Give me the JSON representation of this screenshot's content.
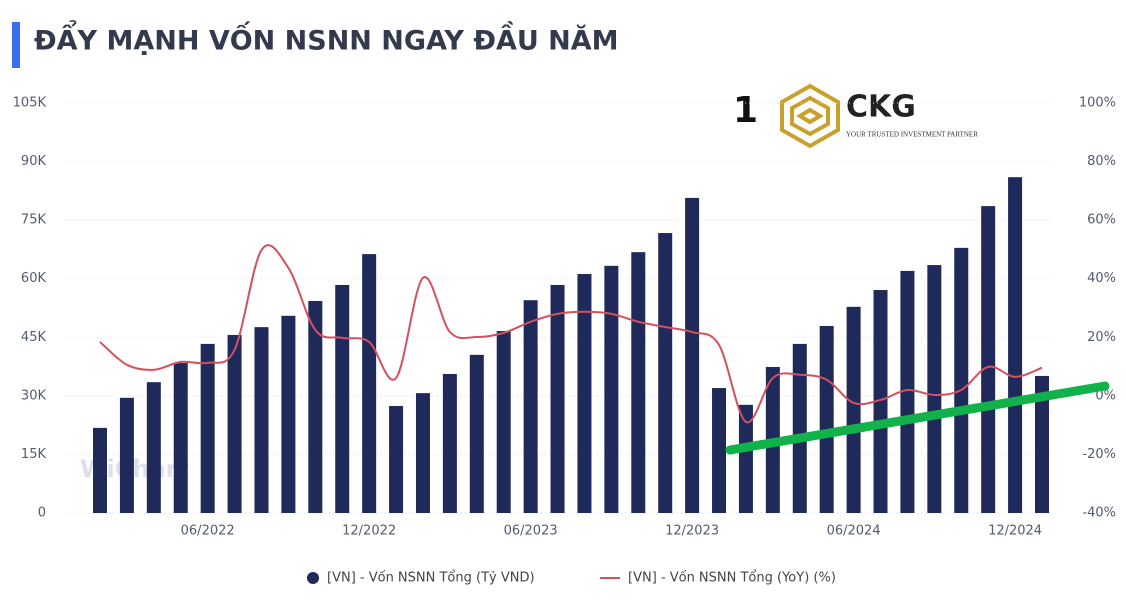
{
  "chart_data": {
    "type": "bar",
    "title": "ĐẨY MẠNH VỐN NSNN NGAY ĐẦU NĂM",
    "categories": [
      null,
      null,
      null,
      null,
      "06/2022",
      null,
      null,
      null,
      null,
      null,
      "12/2022",
      null,
      null,
      null,
      null,
      null,
      "06/2023",
      null,
      null,
      null,
      null,
      null,
      "12/2023",
      null,
      null,
      null,
      null,
      null,
      "06/2024",
      null,
      null,
      null,
      null,
      null,
      "12/2024",
      null
    ],
    "series": [
      {
        "name": "[VN] - Vốn NSNN Tổng (Tỷ VND)",
        "type": "bar",
        "color": "#1f2a5a",
        "values": [
          21800,
          29500,
          33500,
          38400,
          43300,
          45600,
          47600,
          50500,
          54300,
          58400,
          66300,
          27400,
          30700,
          35600,
          40500,
          46600,
          54500,
          58400,
          61200,
          63300,
          66800,
          71700,
          80700,
          32000,
          27700,
          37400,
          43300,
          47900,
          52800,
          57100,
          62000,
          63500,
          67900,
          78600,
          86000,
          35100
        ]
      },
      {
        "name": "[VN] - Vốn NSNN Tổng (YoY) (%)",
        "type": "line",
        "color": "#d4505f",
        "axis": "y2",
        "values": [
          18.4,
          10.6,
          8.9,
          11.6,
          11.3,
          15.7,
          49.8,
          43.7,
          22.5,
          19.8,
          18.4,
          6.1,
          40.3,
          21.8,
          20.1,
          21.5,
          25.3,
          28.0,
          28.7,
          28.0,
          25.3,
          23.5,
          21.8,
          17.4,
          -8.9,
          6.1,
          7.2,
          5.5,
          -2.4,
          -1.4,
          2.0,
          0.3,
          2.0,
          9.9,
          6.5,
          9.6
        ]
      }
    ],
    "ylim": [
      0,
      105000
    ],
    "yticks": [
      0,
      {
        "value": 15000,
        "label": "15K"
      },
      {
        "value": 30000,
        "label": "30K"
      },
      {
        "value": 45000,
        "label": "45K"
      },
      {
        "value": 60000,
        "label": "60K"
      },
      {
        "value": 75000,
        "label": "75K"
      },
      {
        "value": 90000,
        "label": "90K"
      },
      {
        "value": 105000,
        "label": "105K"
      }
    ],
    "y2lim": [
      -40,
      100
    ],
    "y2ticks": [
      {
        "value": -40,
        "label": "-40%"
      },
      {
        "value": -20,
        "label": "-20%"
      },
      {
        "value": 0,
        "label": "0%"
      },
      {
        "value": 20,
        "label": "20%"
      },
      {
        "value": 40,
        "label": "40%"
      },
      {
        "value": 60,
        "label": "60%"
      },
      {
        "value": 80,
        "label": "80%"
      },
      {
        "value": 100,
        "label": "100%"
      }
    ],
    "grid": true,
    "legend": "bottom"
  },
  "logo": {
    "number": "1",
    "name": "CKG",
    "tagline": "YOUR TRUSTED INVESTMENT PARTNER"
  },
  "watermark": "WiChart"
}
